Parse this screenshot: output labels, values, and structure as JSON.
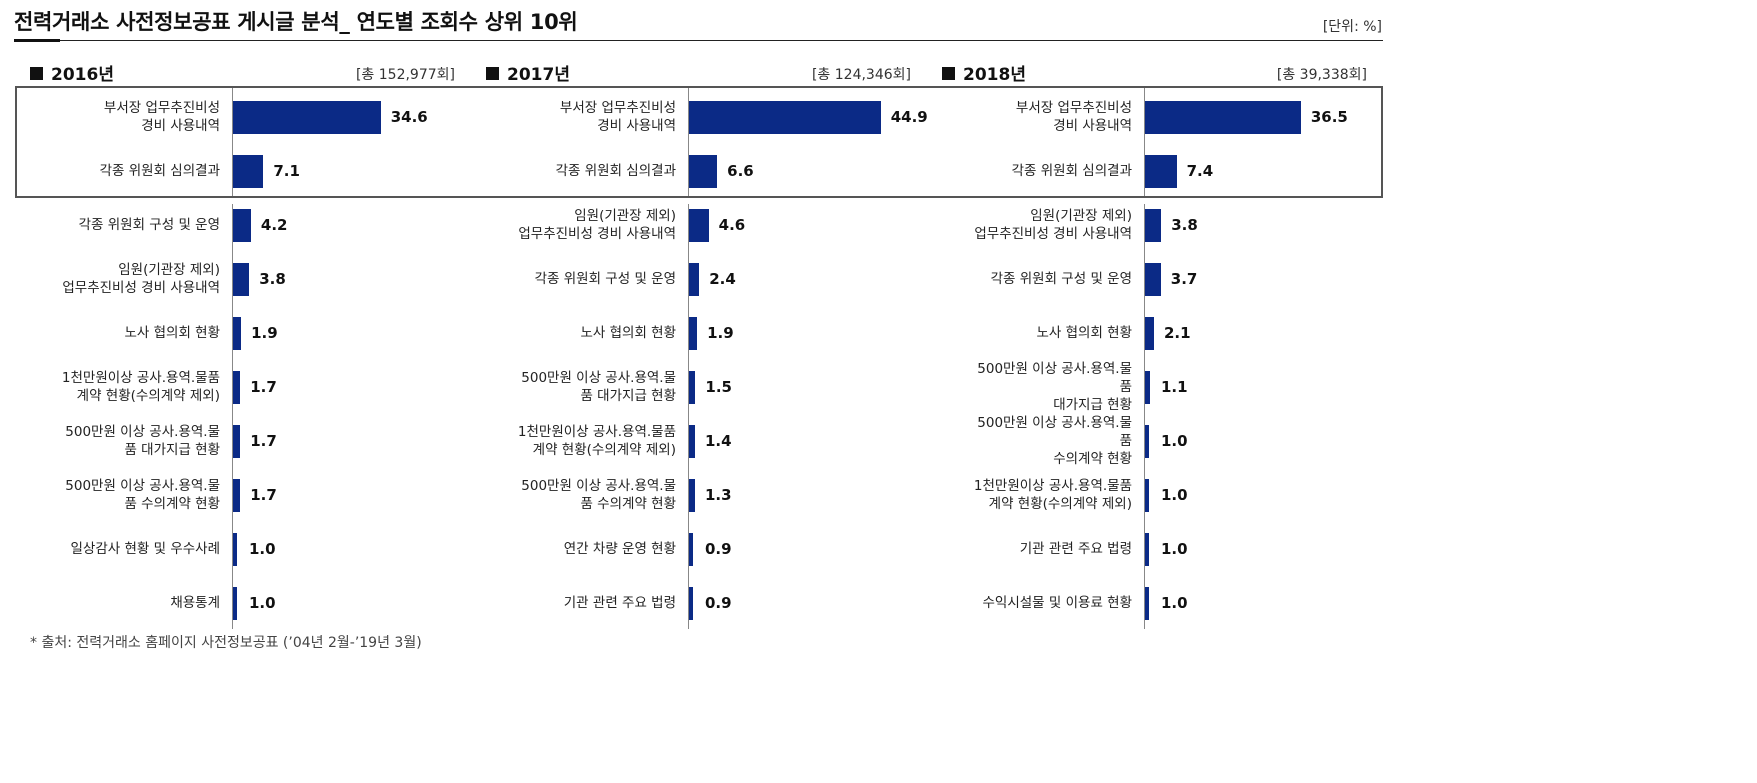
{
  "header": {
    "title": "전력거래소 사전정보공표 게시글 분석_ 연도별 조회수 상위 10위",
    "unit": "[단위: %]"
  },
  "footer": {
    "source": "* 출처: 전력거래소 홈페이지 사전정보공표 (’04년 2월-’19년 3월)"
  },
  "chart_data": [
    {
      "type": "bar",
      "orientation": "horizontal",
      "title": "2016년",
      "total": "[총 152,977회]",
      "categories": [
        "부서장 업무추진비성\n경비 사용내역",
        "각종 위원회 심의결과",
        "각종 위원회 구성 및 운영",
        "임원(기관장 제외)\n업무추진비성 경비 사용내역",
        "노사 협의회 현황",
        "1천만원이상 공사.용역.물품\n계약 현황(수의계약 제외)",
        "500만원  이상 공사.용역.물\n품 대가지급 현황",
        "500만원  이상 공사.용역.물\n품 수의계약 현황",
        "일상감사 현황 및 우수사례",
        "채용통계"
      ],
      "values": [
        34.6,
        7.1,
        4.2,
        3.8,
        1.9,
        1.7,
        1.7,
        1.7,
        1.0,
        1.0
      ],
      "value_labels": [
        "34.6",
        "7.1",
        "4.2",
        "3.8",
        "1.9",
        "1.7",
        "1.7",
        "1.7",
        "1.0",
        "1.0"
      ],
      "highlighted_top": 2,
      "bar_color": "#0b2a86"
    },
    {
      "type": "bar",
      "orientation": "horizontal",
      "title": "2017년",
      "total": "[총 124,346회]",
      "categories": [
        "부서장 업무추진비성\n경비 사용내역",
        "각종 위원회 심의결과",
        "임원(기관장 제외)\n업무추진비성 경비 사용내역",
        "각종 위원회 구성 및 운영",
        "노사 협의회 현황",
        "500만원  이상 공사.용역.물\n품 대가지급 현황",
        "1천만원이상 공사.용역.물품\n계약 현황(수의계약 제외)",
        "500만원  이상 공사.용역.물\n품 수의계약 현황",
        "연간 차량 운영 현황",
        "기관 관련 주요 법령"
      ],
      "values": [
        44.9,
        6.6,
        4.6,
        2.4,
        1.9,
        1.5,
        1.4,
        1.3,
        0.9,
        0.9
      ],
      "value_labels": [
        "44.9",
        "6.6",
        "4.6",
        "2.4",
        "1.9",
        "1.5",
        "1.4",
        "1.3",
        "0.9",
        "0.9"
      ],
      "highlighted_top": 2,
      "bar_color": "#0b2a86"
    },
    {
      "type": "bar",
      "orientation": "horizontal",
      "title": "2018년",
      "total": "[총 39,338회]",
      "categories": [
        "부서장 업무추진비성\n경비 사용내역",
        "각종 위원회 심의결과",
        "임원(기관장 제외)\n업무추진비성 경비 사용내역",
        "각종 위원회 구성 및 운영",
        "노사 협의회 현황",
        "500만원  이상 공사.용역.물\n품\n대가지급 현황",
        "500만원  이상 공사.용역.물\n품\n수의계약 현황",
        "1천만원이상 공사.용역.물품\n계약 현황(수의계약 제외)",
        "기관 관련 주요 법령",
        "수익시설물 및 이용료 현황"
      ],
      "values": [
        36.5,
        7.4,
        3.8,
        3.7,
        2.1,
        1.1,
        1.0,
        1.0,
        1.0,
        1.0
      ],
      "value_labels": [
        "36.5",
        "7.4",
        "3.8",
        "3.7",
        "2.1",
        "1.1",
        "1.0",
        "1.0",
        "1.0",
        "1.0"
      ],
      "highlighted_top": 2,
      "bar_color": "#0b2a86"
    }
  ]
}
